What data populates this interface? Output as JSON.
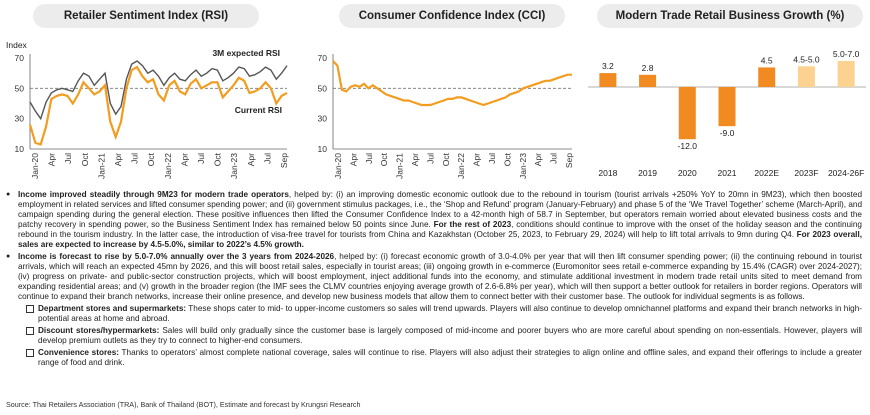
{
  "panels": {
    "rsi_title": "Retailer Sentiment Index (RSI)",
    "cci_title": "Consumer Confidence Index (CCI)",
    "mtr_title": "Modern Trade Retail Business Growth (%)"
  },
  "chart_data": [
    {
      "type": "line",
      "title": "Retailer Sentiment Index (RSI)",
      "ylabel": "Index",
      "ylim": [
        10,
        70
      ],
      "yticks": [
        10,
        30,
        50,
        70
      ],
      "xtick_labels": [
        "Jan-20",
        "Apr",
        "Jul",
        "Oct",
        "Jan-21",
        "Apr",
        "Jul",
        "Oct",
        "Jan-22",
        "Apr",
        "Jul",
        "Oct",
        "Jan-23",
        "Apr",
        "Jul",
        "Sep"
      ],
      "reference_line": 50,
      "series": [
        {
          "name": "3M expected RSI",
          "color": "#555555",
          "values": [
            41,
            35,
            30,
            41,
            47,
            49,
            50,
            49,
            48,
            55,
            60,
            58,
            52,
            56,
            60,
            40,
            33,
            38,
            56,
            66,
            68,
            65,
            60,
            62,
            58,
            52,
            57,
            60,
            56,
            55,
            59,
            62,
            58,
            60,
            63,
            62,
            55,
            57,
            60,
            64,
            63,
            58,
            59,
            61,
            64,
            62,
            56,
            60,
            65
          ]
        },
        {
          "name": "Current RSI",
          "color": "#f39c1f",
          "values": [
            26,
            14,
            13,
            25,
            43,
            45,
            46,
            45,
            40,
            46,
            54,
            50,
            46,
            48,
            52,
            28,
            18,
            28,
            50,
            62,
            64,
            58,
            54,
            56,
            46,
            42,
            52,
            55,
            48,
            46,
            53,
            56,
            50,
            52,
            54,
            54,
            44,
            48,
            52,
            57,
            55,
            47,
            48,
            50,
            54,
            50,
            40,
            45,
            47
          ]
        }
      ]
    },
    {
      "type": "line",
      "title": "Consumer Confidence Index (CCI)",
      "ylim": [
        10,
        70
      ],
      "yticks": [
        10,
        30,
        50,
        70
      ],
      "xtick_labels": [
        "Jan-20",
        "Apr",
        "Jul",
        "Oct",
        "Jan-21",
        "Apr",
        "Jul",
        "Oct",
        "Jan-22",
        "Apr",
        "Jul",
        "Oct",
        "Jan-23",
        "Apr",
        "Jul",
        "Sep"
      ],
      "reference_line": 50,
      "series": [
        {
          "name": "",
          "color": "#f39c1f",
          "values": [
            68,
            65,
            49,
            48,
            51,
            52,
            51,
            53,
            50,
            52,
            50,
            48,
            46,
            45,
            44,
            43,
            42,
            42,
            41,
            40,
            39,
            39,
            39,
            40,
            41,
            42,
            43,
            43,
            44,
            44,
            43,
            42,
            41,
            40,
            39,
            40,
            41,
            42,
            43,
            44,
            46,
            47,
            48,
            50,
            51,
            52,
            53,
            54,
            55,
            55,
            56,
            57,
            58,
            59,
            59
          ]
        }
      ]
    },
    {
      "type": "bar",
      "title": "Modern Trade Retail Business Growth (%)",
      "categories": [
        "2018",
        "2019",
        "2020",
        "2021",
        "2022E",
        "2023F",
        "2024-26F"
      ],
      "values": [
        3.2,
        2.8,
        -12.0,
        -9.0,
        4.5,
        4.75,
        6.0
      ],
      "value_labels": [
        "3.2",
        "2.8",
        "-12.0",
        "-9.0",
        "4.5",
        "4.5-5.0",
        "5.0-7.0"
      ],
      "colors": [
        "#f28a22",
        "#f28a22",
        "#f28a22",
        "#f28a22",
        "#f28a22",
        "#fbd28f",
        "#fbd28f"
      ],
      "ylim": [
        -14,
        8
      ]
    }
  ],
  "text": {
    "p1_bold1": "Income improved steadily through 9M23 for modern trade operators",
    "p1_rest": ", helped by: (i) an improving domestic economic outlook due to the rebound in tourism (tourist arrivals +250% YoY to 20mn in 9M23), which then boosted employment in related services and lifted consumer spending power; and (ii) government stimulus packages, i.e., the ‘Shop and Refund’ program (January-February) and phase 5 of the ‘We Travel Together’ scheme (March-April), and campaign spending during the general election. These positive influences then lifted the Consumer Confidence Index to a 42-month high of 58.7 in September, but operators remain worried about elevated business costs and the patchy recovery in spending power, so the Business Sentiment Index has remained below 50 points since June. ",
    "p1_bold2": "For the rest of 2023",
    "p1_rest2": ", conditions should continue to improve with the onset of the holiday season and the continuing rebound in the tourism industry. In the latter case, the introduction of visa-free travel for tourists from China and Kazakhstan (October 25, 2023, to February 29, 2024) will help to lift total arrivals to 9mn during Q4. ",
    "p1_bold3": "For 2023 overall, sales are expected to increase by 4.5-5.0%, similar to 2022’s 4.5% growth.",
    "p2_bold1": "Income is forecast to rise by 5.0-7.0% annually over the 3 years from 2024-2026",
    "p2_rest": ", helped by: (i) forecast economic growth of 3.0-4.0% per year that will then lift consumer spending power; (ii) the continuing rebound in tourist arrivals, which will reach an expected 45mn by 2026, and this will boost retail sales, especially in tourist areas; (iii) ongoing growth in e-commerce (Euromonitor sees retail e-commerce expanding by 15.4% (CAGR) over 2024-2027); (iv) progress on private- and public-sector construction projects, which will boost employment, inject additional funds into the economy, and stimulate additional investment in modern trade retail units sited to meet demand from expanding residential areas; and (v) growth in the broader region (the IMF sees the CLMV countries enjoying average growth of 2.6-6.8% per year), which will then support a better outlook for retailers in border regions. Operators will continue to expand their branch networks, increase their online presence, and develop new business models that allow them to connect better with their customer base. The outlook for individual segments is as follows.",
    "s1_bold": "Department stores and supermarkets:",
    "s1_rest": " These shops cater to mid- to upper-income customers so sales will trend upwards. Players will also continue to develop omnichannel platforms and expand their branch networks in high-potential areas at home and abroad.",
    "s2_bold": "Discount stores/hypermarkets:",
    "s2_rest": " Sales will build only gradually since the customer base is largely composed of mid-income and poorer buyers who are more careful about spending on non-essentials. However, players will develop premium outlets as they try to connect to higher-end consumers.",
    "s3_bold": "Convenience stores:",
    "s3_rest": " Thanks to operators’ almost complete national coverage, sales will continue to rise. Players will also adjust their strategies to align online and offline sales, and expand their offerings to include a greater range of food and drink.",
    "source": "Source: Thai Retailers Association (TRA), Bank of Thailand (BOT), Estimate and forecast by Krungsri Research"
  }
}
